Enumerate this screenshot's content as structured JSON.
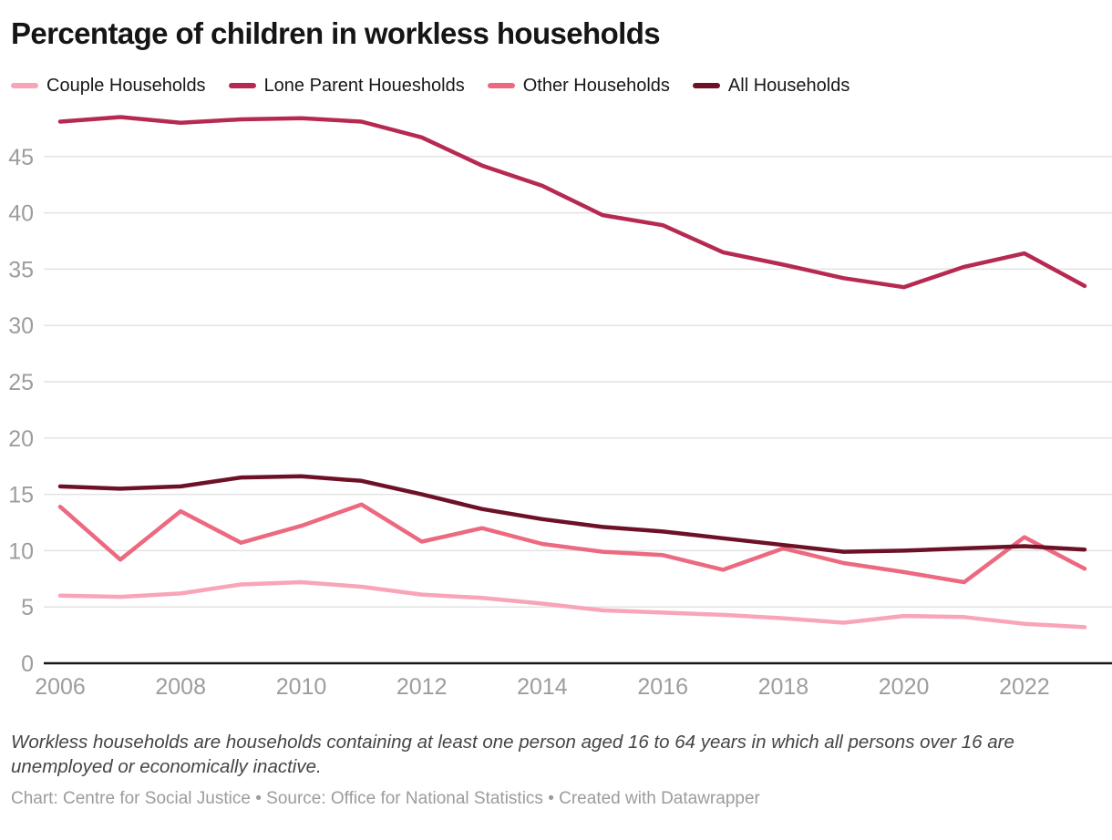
{
  "title": "Percentage of children in workless households",
  "legend": [
    {
      "label": "Couple Households",
      "color": "#F8A5B8"
    },
    {
      "label": "Lone Parent Houesholds",
      "color": "#B62A52"
    },
    {
      "label": "Other Households",
      "color": "#ED6980"
    },
    {
      "label": "All Households",
      "color": "#6D1126"
    }
  ],
  "chart_data": {
    "type": "line",
    "title": "Percentage of children in workless households",
    "x": [
      2006,
      2007,
      2008,
      2009,
      2010,
      2011,
      2012,
      2013,
      2014,
      2015,
      2016,
      2017,
      2018,
      2019,
      2020,
      2021,
      2022,
      2023
    ],
    "series": [
      {
        "name": "Couple Households",
        "color": "#F8A5B8",
        "values": [
          6.0,
          5.9,
          6.2,
          7.0,
          7.2,
          6.8,
          6.1,
          5.8,
          5.3,
          4.7,
          4.5,
          4.3,
          4.0,
          3.6,
          4.2,
          4.1,
          3.5,
          3.2
        ]
      },
      {
        "name": "Lone Parent Houesholds",
        "color": "#B62A52",
        "values": [
          48.1,
          48.5,
          48.0,
          48.3,
          48.4,
          48.1,
          46.7,
          44.2,
          42.4,
          39.8,
          38.9,
          36.5,
          35.4,
          34.2,
          33.4,
          35.2,
          36.4,
          33.5
        ]
      },
      {
        "name": "Other Households",
        "color": "#ED6980",
        "values": [
          13.9,
          9.2,
          13.5,
          10.7,
          12.2,
          14.1,
          10.8,
          12.0,
          10.6,
          9.9,
          9.6,
          8.3,
          10.2,
          8.9,
          8.1,
          7.2,
          11.2,
          8.4
        ]
      },
      {
        "name": "All Households",
        "color": "#6D1126",
        "values": [
          15.7,
          15.5,
          15.7,
          16.5,
          16.6,
          16.2,
          15.0,
          13.7,
          12.8,
          12.1,
          11.7,
          11.1,
          10.5,
          9.9,
          10.0,
          10.2,
          10.4,
          10.1
        ]
      }
    ],
    "yticks": [
      0,
      5,
      10,
      15,
      20,
      25,
      30,
      35,
      40,
      45
    ],
    "xticks": [
      2006,
      2008,
      2010,
      2012,
      2014,
      2016,
      2018,
      2020,
      2022
    ],
    "ylim": [
      0,
      49.5
    ],
    "grid": "horizontal",
    "legend_position": "top",
    "colors": {
      "gridline": "#e3e3e3",
      "baseline": "#161616",
      "tick_text": "#9d9d9d"
    }
  },
  "footer": {
    "note": "Workless households are households containing at least one person aged 16 to 64 years in which all persons over 16 are unemployed or economically inactive.",
    "credit": "Chart: Centre for Social Justice • Source: Office for National Statistics • Created with Datawrapper"
  }
}
